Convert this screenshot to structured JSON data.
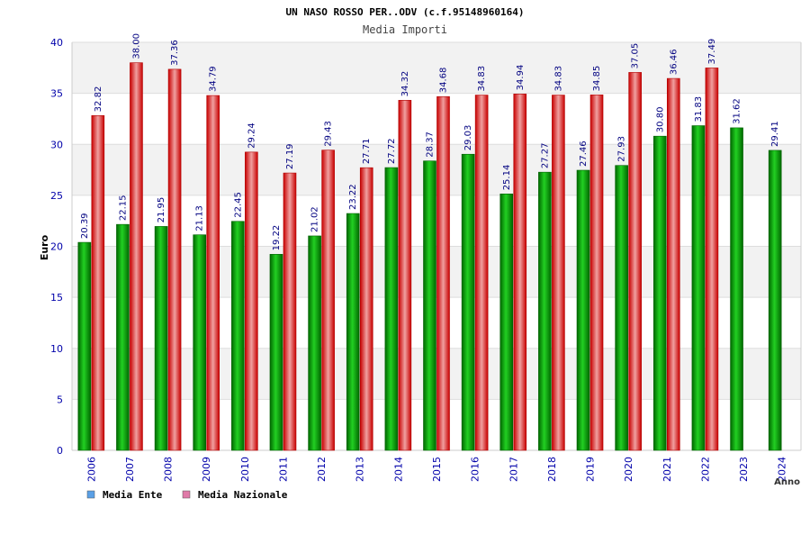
{
  "chart_data": {
    "type": "bar",
    "title": "UN NASO ROSSO PER..ODV (c.f.95148960164)",
    "subtitle": "Media Importi",
    "ylabel": "Euro",
    "xlabel": "Anno",
    "ylim": [
      0,
      40
    ],
    "yticks": [
      0,
      5,
      10,
      15,
      20,
      25,
      30,
      35,
      40
    ],
    "grid": true,
    "legend_position": "bottom-left",
    "categories": [
      "2006",
      "2007",
      "2008",
      "2009",
      "2010",
      "2011",
      "2012",
      "2013",
      "2014",
      "2015",
      "2016",
      "2017",
      "2018",
      "2019",
      "2020",
      "2021",
      "2022",
      "2023",
      "2024"
    ],
    "series": [
      {
        "name": "Media Ente",
        "color": "#00b400",
        "legend_color": "#5aa0e6",
        "values": [
          20.39,
          22.15,
          21.95,
          21.13,
          22.45,
          19.22,
          21.02,
          23.22,
          27.72,
          28.37,
          29.03,
          25.14,
          27.27,
          27.46,
          27.93,
          30.8,
          31.83,
          31.62,
          29.41
        ],
        "labels": [
          "20.39",
          "22.15",
          "21.95",
          "21.13",
          "22.45",
          "19.22",
          "21.02",
          "23.22",
          "27.72",
          "28.37",
          "29.03",
          "25.14",
          "27.27",
          "27.46",
          "27.93",
          "30.80",
          "31.83",
          "31.62",
          "29.41"
        ]
      },
      {
        "name": "Media Nazionale",
        "color": "#e01010",
        "legend_color": "#e07aa8",
        "values": [
          32.82,
          38.0,
          37.36,
          34.79,
          29.24,
          27.19,
          29.43,
          27.71,
          34.32,
          34.68,
          34.83,
          34.94,
          34.83,
          34.85,
          37.05,
          36.46,
          37.49,
          null,
          null
        ],
        "labels": [
          "32.82",
          "38.00",
          "37.36",
          "34.79",
          "29.24",
          "27.19",
          "29.43",
          "27.71",
          "34.32",
          "34.68",
          "34.83",
          "34.94",
          "34.83",
          "34.85",
          "37.05",
          "36.46",
          "37.49",
          null,
          null
        ]
      }
    ]
  }
}
